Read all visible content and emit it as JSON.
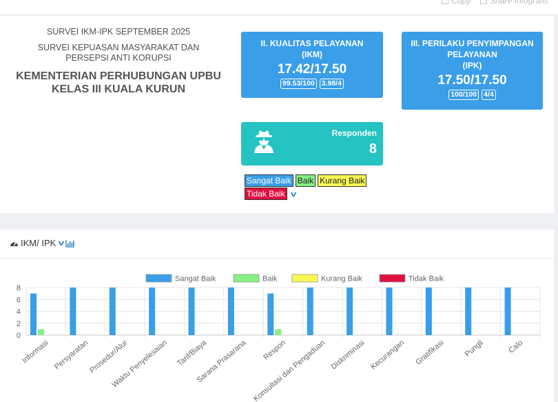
{
  "topbar": {
    "links": [
      {
        "icon": "copy-icon",
        "label": "Copy"
      },
      {
        "icon": "share-icon",
        "label": "Share Infografis"
      }
    ]
  },
  "info": {
    "line1": "SURVEI IKM-IPK SEPTEMBER 2025",
    "line2": "SURVEI KEPUASAN MASYARAKAT DAN PERSEPSI ANTI KORUPSI",
    "line3": "KEMENTERIAN PERHUBUNGAN UPBU KELAS III KUALA KURUN"
  },
  "cards": {
    "ikm": {
      "title": "II. KUALITAS PELAYANAN",
      "sub": "(IKM)",
      "value": "17.42/17.50",
      "badges": [
        "99.53/100",
        "3.98/4"
      ]
    },
    "ipk": {
      "title": "III. PERILAKU PENYIMPANGAN PELAYANAN",
      "sub": "(IPK)",
      "value": "17.50/17.50",
      "badges": [
        "100/100",
        "4/4"
      ]
    }
  },
  "responden": {
    "label": "Responden",
    "value": "8",
    "icon": "user-secret-icon"
  },
  "legend_toggle": {
    "items": [
      "Sangat Baik",
      "Baik",
      "Kurang Baik",
      "Tidak Baik"
    ],
    "icon": "chevron-down-icon"
  },
  "section": {
    "title": "IKM/ IPK",
    "icons": [
      "dashboard-icon",
      "chevron-down-icon",
      "bar-chart-icon"
    ]
  },
  "colors": {
    "sangat_baik": "#3a9ee8",
    "baik": "#86ef86",
    "kurang_baik": "#f8f854",
    "tidak_baik": "#e0103f",
    "responden": "#25c3c1"
  },
  "chart_data": {
    "type": "bar",
    "categories": [
      "Informasi",
      "Persyaratan",
      "Prosedur/Alur",
      "Waktu Penyelesaian",
      "Tarif/Biaya",
      "Sarana Prasarana",
      "Respon",
      "Konsultasi dan Pengaduan",
      "Diskriminasi",
      "Kecurangan",
      "Gratifikasi",
      "Pungli",
      "Calo"
    ],
    "series": [
      {
        "name": "Sangat Baik",
        "color": "#3a9ee8",
        "values": [
          7,
          8,
          8,
          8,
          8,
          8,
          7,
          8,
          8,
          8,
          8,
          8,
          8
        ]
      },
      {
        "name": "Baik",
        "color": "#86ef86",
        "values": [
          1,
          0,
          0,
          0,
          0,
          0,
          1,
          0,
          0,
          0,
          0,
          0,
          0
        ]
      },
      {
        "name": "Kurang Baik",
        "color": "#f8f854",
        "values": [
          0,
          0,
          0,
          0,
          0,
          0,
          0,
          0,
          0,
          0,
          0,
          0,
          0
        ]
      },
      {
        "name": "Tidak Baik",
        "color": "#e0103f",
        "values": [
          0,
          0,
          0,
          0,
          0,
          0,
          0,
          0,
          0,
          0,
          0,
          0,
          0
        ]
      }
    ],
    "yticks": [
      0,
      2,
      4,
      6,
      8
    ],
    "ylim": [
      0,
      8
    ],
    "grid": true,
    "legend": "top"
  }
}
